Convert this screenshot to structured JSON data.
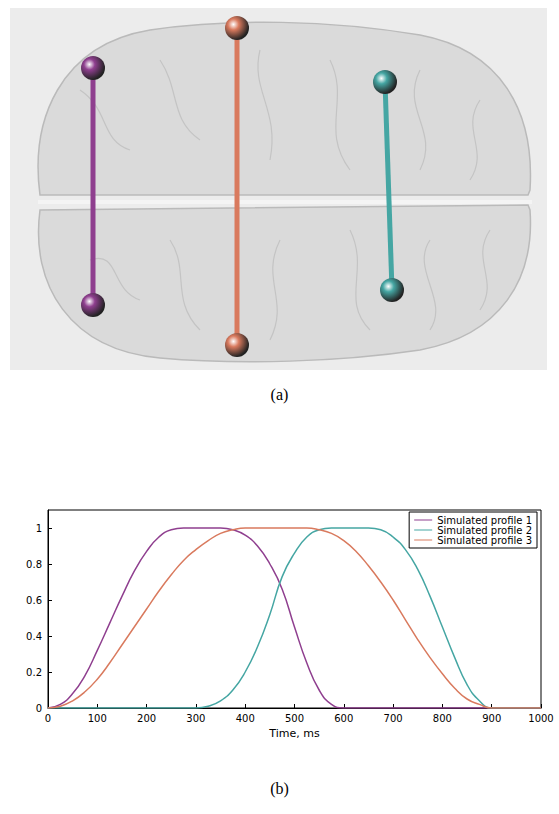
{
  "figure": {
    "captions": [
      "(a)",
      "(b)"
    ]
  },
  "chart_data": {
    "type": "line",
    "x_label": "Time, ms",
    "x": [
      0,
      25,
      50,
      75,
      100,
      125,
      150,
      175,
      200,
      225,
      250,
      275,
      300,
      325,
      350,
      375,
      400,
      425,
      450,
      475,
      500,
      525,
      550,
      575,
      600,
      625,
      650,
      675,
      700,
      725,
      750,
      775,
      800,
      825,
      850,
      875,
      900,
      925,
      950,
      975,
      1000
    ],
    "series": [
      {
        "name": "Simulated profile 1",
        "color": "#8f3f8f",
        "values": [
          0,
          0.02,
          0.08,
          0.18,
          0.32,
          0.47,
          0.62,
          0.76,
          0.87,
          0.95,
          0.99,
          1,
          1,
          1,
          1,
          0.99,
          0.96,
          0.9,
          0.8,
          0.66,
          0.45,
          0.25,
          0.1,
          0.02,
          0,
          0,
          0,
          0,
          0,
          0,
          0,
          0,
          0,
          0,
          0,
          0,
          0,
          0,
          0,
          0,
          0
        ]
      },
      {
        "name": "Simulated profile 2",
        "color": "#45a6a3",
        "values": [
          0,
          0,
          0,
          0,
          0,
          0,
          0,
          0,
          0,
          0,
          0,
          0,
          0,
          0.01,
          0.04,
          0.1,
          0.2,
          0.34,
          0.52,
          0.73,
          0.86,
          0.95,
          0.99,
          1,
          1,
          1,
          1,
          0.99,
          0.95,
          0.88,
          0.77,
          0.62,
          0.45,
          0.28,
          0.13,
          0.04,
          0,
          0,
          0,
          0,
          0
        ]
      },
      {
        "name": "Simulated profile 3",
        "color": "#d97a5e",
        "values": [
          0,
          0.01,
          0.04,
          0.09,
          0.16,
          0.25,
          0.35,
          0.45,
          0.55,
          0.65,
          0.74,
          0.82,
          0.88,
          0.93,
          0.97,
          0.99,
          1,
          1,
          1,
          1,
          1,
          1,
          0.99,
          0.97,
          0.93,
          0.87,
          0.79,
          0.7,
          0.6,
          0.49,
          0.38,
          0.28,
          0.19,
          0.11,
          0.05,
          0.02,
          0,
          0,
          0,
          0,
          0
        ]
      }
    ],
    "xlim": [
      0,
      1000
    ],
    "xticks": [
      0,
      100,
      200,
      300,
      400,
      500,
      600,
      700,
      800,
      900,
      1000
    ],
    "ylim": [
      0,
      1.1
    ],
    "yticks": [
      0,
      0.2,
      0.4,
      0.6,
      0.8,
      1
    ],
    "grid": false,
    "legend": "upper right"
  }
}
